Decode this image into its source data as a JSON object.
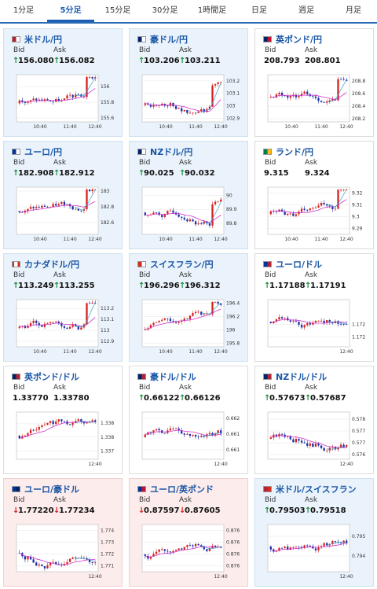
{
  "tabs": [
    "1分足",
    "5分足",
    "15分足",
    "30分足",
    "1時間足",
    "日足",
    "週足",
    "月足"
  ],
  "active_tab": 1,
  "labels": {
    "bid": "Bid",
    "ask": "Ask"
  },
  "arrows": {
    "up": "↑",
    "down": "↓"
  },
  "colors": {
    "accent": "#1a56a6",
    "up": "#1a8f3a",
    "down": "#d02020",
    "candle_up": "#d62020",
    "candle_down": "#1b2fa8",
    "ma": "#cc33cc",
    "ma_fast": "#3aa0c8"
  },
  "cards": [
    {
      "pair": "米ドル/円",
      "flag": "flag-us-jp-icon",
      "bg": "blue",
      "bid": "156.080",
      "ask": "156.082",
      "dir": "up",
      "chart": {
        "x_ticks": [
          "10:40",
          "11:40",
          "12:40"
        ],
        "y_ticks": [
          "156",
          "155.8",
          "155.6"
        ],
        "ymin": 155.55,
        "ymax": 156.15,
        "last_jump": true
      }
    },
    {
      "pair": "豪ドル/円",
      "flag": "flag-au-jp-icon",
      "bg": "blue",
      "bid": "103.206",
      "ask": "103.211",
      "dir": "up",
      "chart": {
        "x_ticks": [
          "10:40",
          "11:40",
          "12:40"
        ],
        "y_ticks": [
          "103.2",
          "103.1",
          "103",
          "102.9"
        ],
        "ymin": 102.87,
        "ymax": 103.25,
        "last_jump": true
      }
    },
    {
      "pair": "英ポンド/円",
      "flag": "flag-gb-jp-icon",
      "bg": "white",
      "bid": "208.793",
      "ask": "208.801",
      "dir": "none",
      "chart": {
        "x_ticks": [
          "10:40",
          "11:40",
          "12:40"
        ],
        "y_ticks": [
          "208.8",
          "208.6",
          "208.4",
          "208.2"
        ],
        "ymin": 208.15,
        "ymax": 208.9,
        "last_jump": true
      }
    },
    {
      "pair": "ユーロ/円",
      "flag": "flag-eu-jp-icon",
      "bg": "blue",
      "bid": "182.908",
      "ask": "182.912",
      "dir": "up",
      "chart": {
        "x_ticks": [
          "10:40",
          "11:40",
          "12:40"
        ],
        "y_ticks": [
          "183",
          "182.8",
          "182.6"
        ],
        "ymin": 182.45,
        "ymax": 183.05,
        "last_jump": true
      }
    },
    {
      "pair": "NZドル/円",
      "flag": "flag-nz-jp-icon",
      "bg": "blue",
      "bid": "90.025",
      "ask": "90.032",
      "dir": "up",
      "chart": {
        "x_ticks": [
          "10:40",
          "11:40",
          "12:40"
        ],
        "y_ticks": [
          "90",
          "89.9",
          "89.8"
        ],
        "ymin": 89.72,
        "ymax": 90.06,
        "last_jump": true
      }
    },
    {
      "pair": "ランド/円",
      "flag": "flag-za-jp-icon",
      "bg": "white",
      "bid": "9.315",
      "ask": "9.324",
      "dir": "none",
      "chart": {
        "x_ticks": [
          "10:40",
          "11:40",
          "12:40"
        ],
        "y_ticks": [
          "9.32",
          "9.31",
          "9.3",
          "9.29"
        ],
        "ymin": 9.285,
        "ymax": 9.325,
        "last_jump": true
      }
    },
    {
      "pair": "カナダドル/円",
      "flag": "flag-ca-jp-icon",
      "bg": "blue",
      "bid": "113.249",
      "ask": "113.255",
      "dir": "up",
      "chart": {
        "x_ticks": [
          "10:40",
          "11:40",
          "12:40"
        ],
        "y_ticks": [
          "113.2",
          "113.1",
          "113",
          "112.9"
        ],
        "ymin": 112.85,
        "ymax": 113.28,
        "last_jump": true
      }
    },
    {
      "pair": "スイスフラン/円",
      "flag": "flag-ch-jp-icon",
      "bg": "blue",
      "bid": "196.296",
      "ask": "196.312",
      "dir": "up",
      "chart": {
        "x_ticks": [
          "10:40",
          "11:40",
          "12:40"
        ],
        "y_ticks": [
          "196.4",
          "196.2",
          "196",
          "195.8"
        ],
        "ymin": 195.75,
        "ymax": 196.45,
        "last_jump": true
      }
    },
    {
      "pair": "ユーロ/ドル",
      "flag": "flag-eu-us-icon",
      "bg": "white",
      "bid": "1.17188",
      "ask": "1.17191",
      "dir": "up",
      "chart": {
        "x_ticks": [
          "12:40"
        ],
        "y_ticks": [
          "1.1725",
          "1.172"
        ],
        "ymin": 1.1716,
        "ymax": 1.1735,
        "last_jump": false
      }
    },
    {
      "pair": "英ポンド/ドル",
      "flag": "flag-gb-us-icon",
      "bg": "white",
      "bid": "1.33770",
      "ask": "1.33780",
      "dir": "none",
      "chart": {
        "x_ticks": [
          "12:40"
        ],
        "y_ticks": [
          "1.3385",
          "1.338",
          "1.3375"
        ],
        "ymin": 1.3372,
        "ymax": 1.3389,
        "last_jump": false
      }
    },
    {
      "pair": "豪ドル/ドル",
      "flag": "flag-au-us-icon",
      "bg": "white",
      "bid": "0.66122",
      "ask": "0.66126",
      "dir": "up",
      "chart": {
        "x_ticks": [
          "12:40"
        ],
        "y_ticks": [
          "0.662",
          "0.6615",
          "0.661"
        ],
        "ymin": 0.6607,
        "ymax": 0.6622,
        "last_jump": false
      }
    },
    {
      "pair": "NZドル/ドル",
      "flag": "flag-nz-us-icon",
      "bg": "white",
      "bid": "0.57673",
      "ask": "0.57687",
      "dir": "up",
      "chart": {
        "x_ticks": [
          "12:40"
        ],
        "y_ticks": [
          "0.578",
          "0.5775",
          "0.577",
          "0.5765"
        ],
        "ymin": 0.5763,
        "ymax": 0.5783,
        "last_jump": false
      }
    },
    {
      "pair": "ユーロ/豪ドル",
      "flag": "flag-eu-au-icon",
      "bg": "pink",
      "bid": "1.77220",
      "ask": "1.77234",
      "dir": "down",
      "chart": {
        "x_ticks": [
          "12:40"
        ],
        "y_ticks": [
          "1.774",
          "1.773",
          "1.772",
          "1.771"
        ],
        "ymin": 1.7705,
        "ymax": 1.7745,
        "last_jump": false
      }
    },
    {
      "pair": "ユーロ/英ポンド",
      "flag": "flag-eu-gb-icon",
      "bg": "pink",
      "bid": "0.87597",
      "ask": "0.87605",
      "dir": "down",
      "chart": {
        "x_ticks": [
          "12:40"
        ],
        "y_ticks": [
          "0.8763",
          "0.8762",
          "0.8761",
          "0.876"
        ],
        "ymin": 0.87595,
        "ymax": 0.87635,
        "last_jump": false
      }
    },
    {
      "pair": "米ドル/スイスフラン",
      "flag": "flag-us-ch-icon",
      "bg": "blue",
      "bid": "0.79503",
      "ask": "0.79518",
      "dir": "up",
      "chart": {
        "x_ticks": [
          "12:40"
        ],
        "y_ticks": [
          "0.795",
          "0.7945"
        ],
        "ymin": 0.7941,
        "ymax": 0.7953,
        "last_jump": false
      }
    }
  ]
}
